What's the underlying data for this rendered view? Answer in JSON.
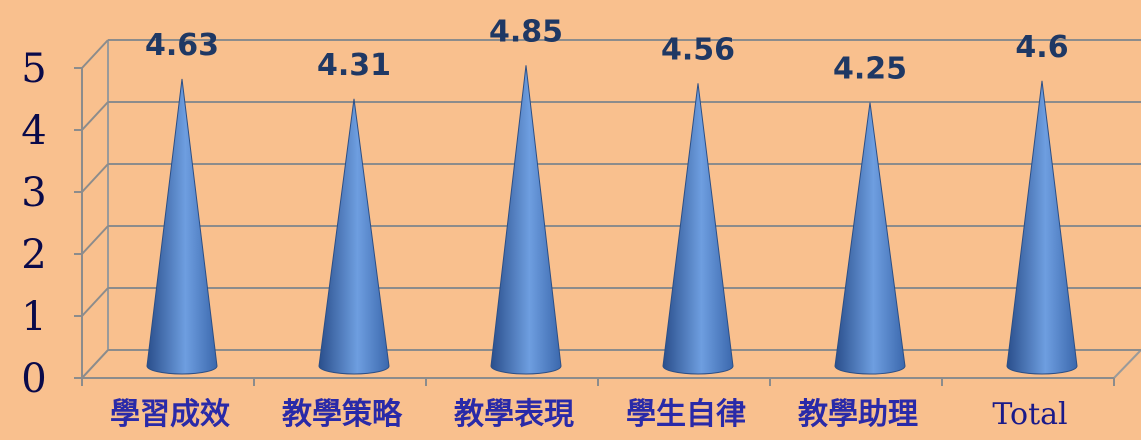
{
  "chart_data": {
    "type": "bar",
    "style": "3d-cone",
    "categories": [
      "學習成效",
      "教學策略",
      "教學表現",
      "學生自律",
      "教學助理",
      "Total"
    ],
    "values": [
      4.63,
      4.31,
      4.85,
      4.56,
      4.25,
      4.6
    ],
    "ylim": [
      0,
      5
    ],
    "yticks": [
      "0",
      "1",
      "2",
      "3",
      "4",
      "5"
    ],
    "grid": true,
    "bar_color": "#4F81BD",
    "background": "#F9C08E"
  }
}
